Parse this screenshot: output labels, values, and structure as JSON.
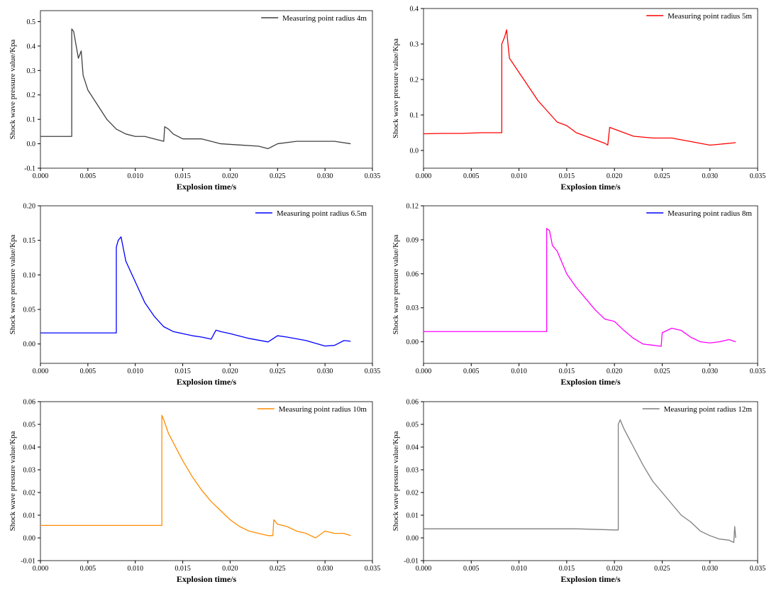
{
  "chart_data": [
    {
      "type": "line",
      "xlabel": "Explosion time/s",
      "ylabel": "Shock wave pressure value/Kpa",
      "x": [
        0,
        0.001,
        0.002,
        0.003,
        0.0033,
        0.0033,
        0.0035,
        0.004,
        0.0043,
        0.0045,
        0.005,
        0.006,
        0.007,
        0.008,
        0.009,
        0.01,
        0.011,
        0.012,
        0.013,
        0.0131,
        0.0135,
        0.014,
        0.015,
        0.017,
        0.019,
        0.021,
        0.023,
        0.024,
        0.025,
        0.027,
        0.029,
        0.031,
        0.0327
      ],
      "series": [
        {
          "name": "Measuring point radius 4m",
          "color": "#404040",
          "values": [
            0.03,
            0.03,
            0.03,
            0.03,
            0.03,
            0.47,
            0.46,
            0.35,
            0.38,
            0.28,
            0.22,
            0.16,
            0.1,
            0.06,
            0.04,
            0.03,
            0.03,
            0.02,
            0.01,
            0.07,
            0.06,
            0.04,
            0.02,
            0.02,
            0.0,
            -0.005,
            -0.01,
            -0.02,
            0.0,
            0.01,
            0.01,
            0.01,
            0.0
          ]
        }
      ],
      "xlim": [
        0,
        0.035
      ],
      "xticks": [
        {
          "value": 0,
          "label": "0.000"
        },
        0.005,
        {
          "value": 0.01,
          "label": "0.010"
        },
        0.015,
        {
          "value": 0.02,
          "label": "0.020"
        },
        0.025,
        {
          "value": 0.03,
          "label": "0.030"
        },
        0.035
      ],
      "ylim": [
        -0.1,
        0.545
      ],
      "yticks": [
        -0.1,
        {
          "value": 0,
          "label": "0.0"
        },
        0.1,
        0.2,
        0.3,
        0.4,
        0.5
      ]
    },
    {
      "type": "line",
      "xlabel": "Explosion time/s",
      "ylabel": "Shock wave pressure value/Kpa",
      "x": [
        0,
        0.002,
        0.004,
        0.006,
        0.008,
        0.0082,
        0.0082,
        0.0085,
        0.0087,
        0.009,
        0.01,
        0.011,
        0.012,
        0.013,
        0.014,
        0.015,
        0.016,
        0.017,
        0.018,
        0.019,
        0.0193,
        0.0195,
        0.02,
        0.022,
        0.024,
        0.026,
        0.028,
        0.03,
        0.032,
        0.0327
      ],
      "series": [
        {
          "name": "Measuring point radius 5m",
          "color": "#ff0000",
          "values": [
            0.047,
            0.048,
            0.048,
            0.05,
            0.05,
            0.05,
            0.3,
            0.32,
            0.34,
            0.26,
            0.22,
            0.18,
            0.14,
            0.11,
            0.08,
            0.07,
            0.05,
            0.04,
            0.03,
            0.02,
            0.015,
            0.065,
            0.06,
            0.04,
            0.035,
            0.035,
            0.025,
            0.015,
            0.02,
            0.022
          ]
        }
      ],
      "xlim": [
        0,
        0.035
      ],
      "xticks": [
        {
          "value": 0,
          "label": "0.000"
        },
        0.005,
        {
          "value": 0.01,
          "label": "0.010"
        },
        0.015,
        {
          "value": 0.02,
          "label": "0.020"
        },
        0.025,
        {
          "value": 0.03,
          "label": "0.030"
        },
        0.035
      ],
      "ylim": [
        -0.05,
        0.4
      ],
      "yticks": [
        {
          "value": 0,
          "label": "0.0"
        },
        0.1,
        0.2,
        0.3,
        0.4
      ]
    },
    {
      "type": "line",
      "xlabel": "Explosion time/s",
      "ylabel": "Shock wave pressure value/Kpa",
      "x": [
        0,
        0.002,
        0.004,
        0.006,
        0.008,
        0.008,
        0.0082,
        0.0085,
        0.009,
        0.01,
        0.011,
        0.012,
        0.013,
        0.014,
        0.015,
        0.016,
        0.017,
        0.018,
        0.0185,
        0.019,
        0.02,
        0.022,
        0.024,
        0.025,
        0.026,
        0.028,
        0.03,
        0.031,
        0.032,
        0.0327
      ],
      "series": [
        {
          "name": "Measuring point radius 6.5m",
          "color": "#0000ff",
          "values": [
            0.016,
            0.016,
            0.016,
            0.016,
            0.016,
            0.14,
            0.15,
            0.155,
            0.12,
            0.09,
            0.06,
            0.04,
            0.025,
            0.018,
            0.015,
            0.012,
            0.01,
            0.007,
            0.02,
            0.018,
            0.015,
            0.008,
            0.003,
            0.012,
            0.01,
            0.005,
            -0.003,
            -0.002,
            0.005,
            0.004
          ]
        }
      ],
      "xlim": [
        0,
        0.035
      ],
      "xticks": [
        {
          "value": 0,
          "label": "0.000"
        },
        0.005,
        {
          "value": 0.01,
          "label": "0.010"
        },
        0.015,
        {
          "value": 0.02,
          "label": "0.020"
        },
        0.025,
        {
          "value": 0.03,
          "label": "0.030"
        },
        0.035
      ],
      "ylim": [
        -0.028,
        0.2
      ],
      "yticks": [
        {
          "value": 0,
          "label": "0.00"
        },
        0.05,
        {
          "value": 0.1,
          "label": "0.10"
        },
        0.15,
        {
          "value": 0.2,
          "label": "0.20"
        }
      ]
    },
    {
      "type": "line",
      "xlabel": "Explosion time/s",
      "ylabel": "Shock wave pressure value/Kpa",
      "legend_color": "#0000ff",
      "x": [
        0,
        0.003,
        0.006,
        0.009,
        0.012,
        0.0129,
        0.0129,
        0.0132,
        0.0135,
        0.014,
        0.015,
        0.016,
        0.017,
        0.018,
        0.019,
        0.02,
        0.021,
        0.022,
        0.023,
        0.024,
        0.0249,
        0.025,
        0.026,
        0.027,
        0.028,
        0.029,
        0.03,
        0.031,
        0.032,
        0.0327
      ],
      "series": [
        {
          "name": "Measuring point radius 8m",
          "color": "#ff00ff",
          "values": [
            0.009,
            0.009,
            0.009,
            0.009,
            0.009,
            0.009,
            0.1,
            0.098,
            0.085,
            0.08,
            0.06,
            0.048,
            0.038,
            0.028,
            0.02,
            0.018,
            0.01,
            0.003,
            -0.002,
            -0.003,
            -0.004,
            0.008,
            0.012,
            0.01,
            0.004,
            0.0,
            -0.001,
            0.0,
            0.002,
            0.0
          ]
        }
      ],
      "xlim": [
        0,
        0.035
      ],
      "xticks": [
        {
          "value": 0,
          "label": "0.000"
        },
        0.005,
        {
          "value": 0.01,
          "label": "0.010"
        },
        0.015,
        {
          "value": 0.02,
          "label": "0.020"
        },
        0.025,
        {
          "value": 0.03,
          "label": "0.030"
        },
        0.035
      ],
      "ylim": [
        -0.019,
        0.12
      ],
      "yticks": [
        {
          "value": 0,
          "label": "0.00"
        },
        0.03,
        0.06,
        0.09,
        0.12
      ]
    },
    {
      "type": "line",
      "xlabel": "Explosion time/s",
      "ylabel": "Shock wave pressure value/Kpa",
      "x": [
        0,
        0.003,
        0.006,
        0.009,
        0.012,
        0.0128,
        0.0128,
        0.013,
        0.0135,
        0.014,
        0.015,
        0.016,
        0.017,
        0.018,
        0.019,
        0.02,
        0.021,
        0.022,
        0.023,
        0.024,
        0.0245,
        0.0246,
        0.025,
        0.026,
        0.027,
        0.028,
        0.029,
        0.03,
        0.031,
        0.032,
        0.0327
      ],
      "series": [
        {
          "name": "Measuring point radius 10m",
          "color": "#ff8c00",
          "values": [
            0.0055,
            0.0055,
            0.0055,
            0.0055,
            0.0055,
            0.0055,
            0.054,
            0.052,
            0.046,
            0.042,
            0.034,
            0.027,
            0.021,
            0.016,
            0.012,
            0.008,
            0.005,
            0.003,
            0.002,
            0.001,
            0.001,
            0.008,
            0.006,
            0.005,
            0.003,
            0.002,
            0.0,
            0.003,
            0.002,
            0.002,
            0.001
          ]
        }
      ],
      "xlim": [
        0,
        0.035
      ],
      "xticks": [
        {
          "value": 0,
          "label": "0.000"
        },
        0.005,
        {
          "value": 0.01,
          "label": "0.010"
        },
        0.015,
        {
          "value": 0.02,
          "label": "0.020"
        },
        0.025,
        {
          "value": 0.03,
          "label": "0.030"
        },
        0.035
      ],
      "ylim": [
        -0.01,
        0.06
      ],
      "yticks": [
        -0.01,
        {
          "value": 0,
          "label": "0.00"
        },
        0.01,
        0.02,
        0.03,
        0.04,
        0.05,
        0.06
      ]
    },
    {
      "type": "line",
      "xlabel": "Explosion time/s",
      "ylabel": "Shock wave pressure value/Kpa",
      "x": [
        0,
        0.004,
        0.008,
        0.012,
        0.016,
        0.02,
        0.0204,
        0.0204,
        0.0206,
        0.021,
        0.022,
        0.023,
        0.024,
        0.025,
        0.026,
        0.027,
        0.028,
        0.029,
        0.03,
        0.031,
        0.032,
        0.0325,
        0.0326,
        0.0327
      ],
      "series": [
        {
          "name": "Measuring point radius 12m",
          "color": "#7f7f7f",
          "values": [
            0.004,
            0.004,
            0.004,
            0.004,
            0.004,
            0.0035,
            0.0035,
            0.05,
            0.052,
            0.048,
            0.04,
            0.032,
            0.025,
            0.02,
            0.015,
            0.01,
            0.007,
            0.003,
            0.001,
            -0.0005,
            -0.001,
            -0.002,
            0.005,
            0.0
          ]
        }
      ],
      "xlim": [
        0,
        0.035
      ],
      "xticks": [
        {
          "value": 0,
          "label": "0.000"
        },
        0.005,
        {
          "value": 0.01,
          "label": "0.010"
        },
        0.015,
        {
          "value": 0.02,
          "label": "0.020"
        },
        0.025,
        {
          "value": 0.03,
          "label": "0.030"
        },
        0.035
      ],
      "ylim": [
        -0.01,
        0.06
      ],
      "yticks": [
        -0.01,
        {
          "value": 0,
          "label": "0.00"
        },
        0.01,
        0.02,
        0.03,
        0.04,
        0.05,
        0.06
      ]
    }
  ]
}
